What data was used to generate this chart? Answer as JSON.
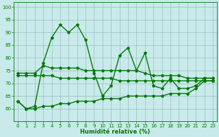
{
  "x": [
    0,
    1,
    2,
    3,
    4,
    5,
    6,
    7,
    8,
    9,
    10,
    11,
    12,
    13,
    14,
    15,
    16,
    17,
    18,
    19,
    20,
    21,
    22,
    23
  ],
  "line1": [
    63,
    60,
    61,
    78,
    88,
    93,
    90,
    93,
    87,
    74,
    65,
    69,
    81,
    84,
    75,
    82,
    69,
    68,
    72,
    68,
    68,
    69,
    72,
    72
  ],
  "line2": [
    74,
    74,
    74,
    77,
    76,
    76,
    76,
    76,
    75,
    75,
    75,
    75,
    75,
    75,
    75,
    74,
    73,
    73,
    73,
    73,
    72,
    72,
    72,
    72
  ],
  "line3": [
    73,
    73,
    73,
    73,
    73,
    72,
    72,
    72,
    72,
    72,
    72,
    72,
    71,
    71,
    71,
    71,
    71,
    71,
    71,
    71,
    71,
    71,
    71,
    71
  ],
  "line4": [
    63,
    60,
    60,
    61,
    61,
    62,
    62,
    63,
    63,
    63,
    64,
    64,
    64,
    65,
    65,
    65,
    65,
    65,
    66,
    66,
    66,
    68,
    71,
    71
  ],
  "xlabel": "Humidité relative (%)",
  "xlim": [
    -0.5,
    23.5
  ],
  "ylim": [
    55,
    102
  ],
  "yticks": [
    60,
    65,
    70,
    75,
    80,
    85,
    90,
    95,
    100
  ],
  "ytick_labels": [
    "60",
    "65",
    "70",
    "75",
    "80",
    "85",
    "90",
    "95",
    "100"
  ],
  "xtick_labels": [
    "0",
    "1",
    "2",
    "3",
    "4",
    "5",
    "6",
    "7",
    "8",
    "9",
    "10",
    "11",
    "12",
    "13",
    "14",
    "15",
    "16",
    "17",
    "18",
    "19",
    "20",
    "21",
    "22",
    "23"
  ],
  "line_color": "#007700",
  "bg_color": "#c8eaea",
  "grid_color": "#99bbbb",
  "marker": "*",
  "marker_size": 3,
  "linewidth": 1.0,
  "tick_fontsize": 5.0,
  "xlabel_fontsize": 6.0
}
